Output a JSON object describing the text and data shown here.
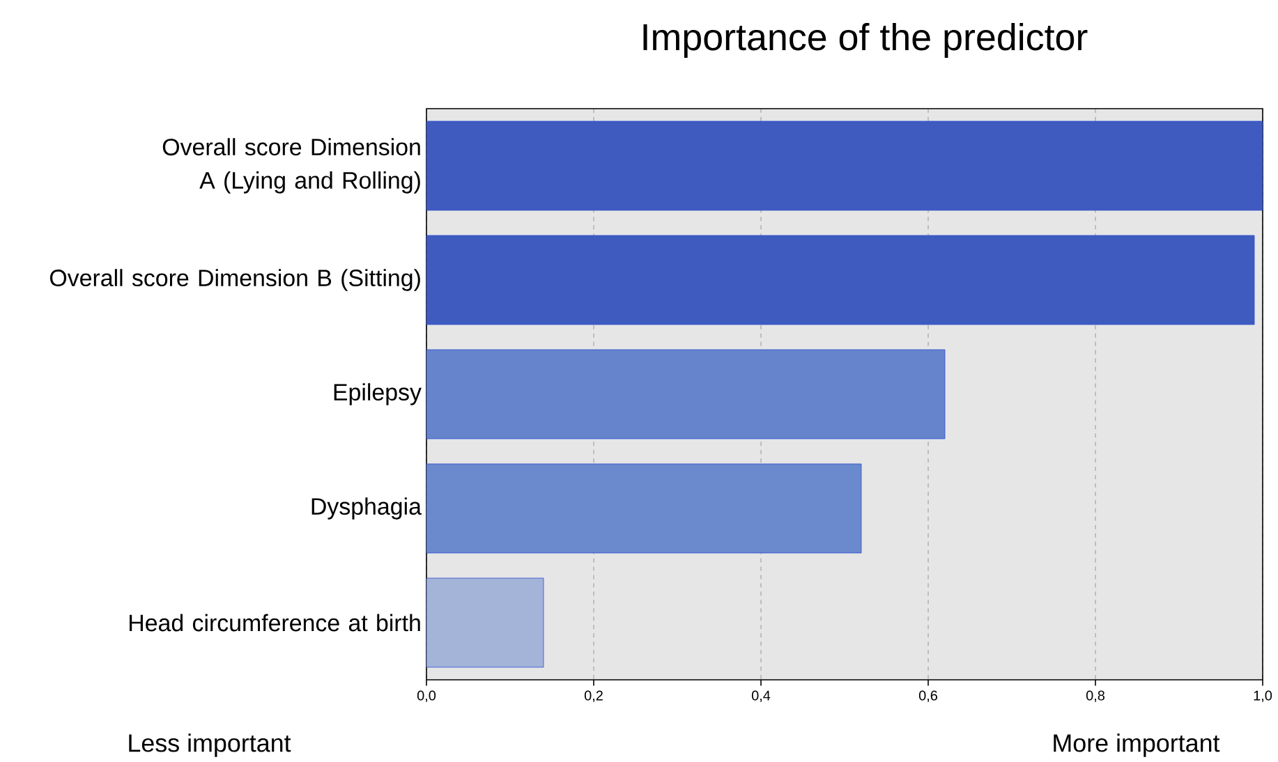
{
  "chart_data": {
    "type": "bar",
    "orientation": "horizontal",
    "title": "Importance of the predictor",
    "categories": [
      "Overall score Dimension A (Lying and Rolling)",
      "Overall score Dimension B (Sitting)",
      "Epilepsy",
      "Dysphagia",
      "Head circumference at birth"
    ],
    "values": [
      1.0,
      0.99,
      0.62,
      0.52,
      0.14
    ],
    "colors": [
      "#3f5bbf",
      "#3f5bbf",
      "#6584cc",
      "#6a8acd",
      "#a3b4d8"
    ],
    "xlim": [
      0,
      1
    ],
    "xticks": [
      {
        "value": 0,
        "label": "0,0"
      },
      {
        "value": 0.2,
        "label": "0,2"
      },
      {
        "value": 0.4,
        "label": "0,4"
      },
      {
        "value": 0.6,
        "label": "0,6"
      },
      {
        "value": 0.8,
        "label": "0,8"
      },
      {
        "value": 1,
        "label": "1,0"
      }
    ],
    "grid": "x",
    "annotations": [
      "Less important",
      "More important"
    ]
  }
}
